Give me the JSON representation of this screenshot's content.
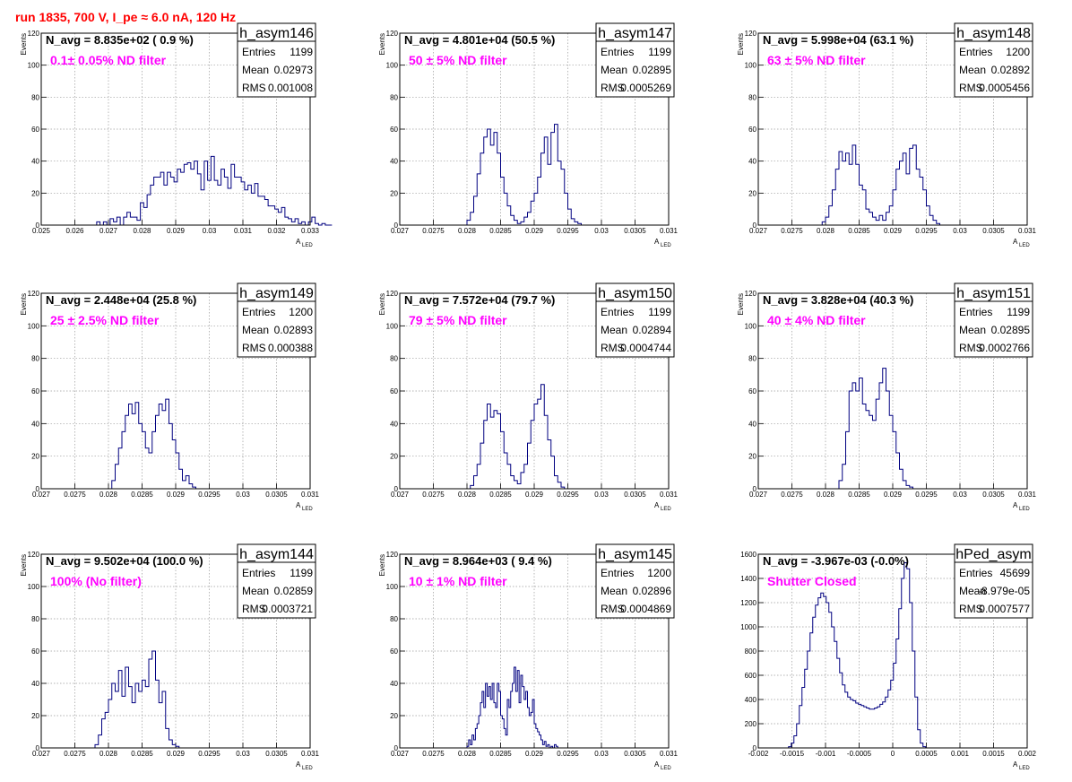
{
  "run_title": "run 1835,   700 V, I_pe ≈ 6.0 nA, 120 Hz",
  "colors": {
    "title": "#ff0000",
    "filter_label": "#ff00ff",
    "histogram": "#000080",
    "grid": "#9a9a9a"
  },
  "chart_data": [
    {
      "type": "histogram",
      "name": "h_asym146",
      "navg_label": "N_avg = 8.835e+02 ( 0.9 %)",
      "filter_label": "0.1± 0.05% ND filter",
      "stats": {
        "entries": "1199",
        "mean": "0.02973",
        "rms": "0.001008"
      },
      "xlabel": "A",
      "xlabel_sub": "LED",
      "ylabel": "Events",
      "xlim": [
        0.025,
        0.033
      ],
      "ylim": [
        0,
        120
      ],
      "xticks": [
        "0.025",
        "0.026",
        "0.027",
        "0.028",
        "0.029",
        "0.03",
        "0.031",
        "0.032",
        "0.033"
      ],
      "yticks": [
        "0",
        "20",
        "40",
        "60",
        "80",
        "100",
        "120"
      ],
      "bins": {
        "start": 0.02665,
        "width": 0.0001,
        "counts": [
          2,
          0,
          2,
          0,
          4,
          2,
          5,
          0,
          5,
          8,
          5,
          5,
          3,
          14,
          11,
          19,
          25,
          30,
          30,
          33,
          25,
          33,
          30,
          27,
          35,
          33,
          38,
          39,
          35,
          40,
          32,
          22,
          40,
          28,
          43,
          28,
          25,
          35,
          30,
          23,
          38,
          30,
          30,
          27,
          22,
          25,
          20,
          26,
          18,
          18,
          16,
          12,
          12,
          10,
          8,
          11,
          5,
          4,
          2,
          4,
          1,
          2,
          0,
          2,
          5,
          1,
          0,
          1,
          0,
          0
        ]
      }
    },
    {
      "type": "histogram",
      "name": "h_asym147",
      "navg_label": "N_avg = 4.801e+04 (50.5 %)",
      "filter_label": "50 ± 5% ND filter",
      "stats": {
        "entries": "1199",
        "mean": "0.02895",
        "rms": "0.0005269"
      },
      "xlabel": "A",
      "xlabel_sub": "LED",
      "ylabel": "Events",
      "xlim": [
        0.027,
        0.031
      ],
      "ylim": [
        0,
        120
      ],
      "xticks": [
        "0.027",
        "0.0275",
        "0.028",
        "0.0285",
        "0.029",
        "0.0295",
        "0.03",
        "0.0305",
        "0.031"
      ],
      "yticks": [
        "0",
        "20",
        "40",
        "60",
        "80",
        "100",
        "120"
      ],
      "bins": {
        "start": 0.028,
        "width": 5e-05,
        "counts": [
          3,
          8,
          18,
          32,
          45,
          55,
          60,
          50,
          58,
          45,
          30,
          20,
          12,
          6,
          3,
          1,
          2,
          5,
          8,
          15,
          20,
          30,
          45,
          55,
          38,
          58,
          63,
          40,
          35,
          20,
          10,
          4,
          2,
          1,
          0,
          0
        ]
      }
    },
    {
      "type": "histogram",
      "name": "h_asym148",
      "navg_label": "N_avg = 5.998e+04 (63.1 %)",
      "filter_label": "63 ± 5% ND filter",
      "stats": {
        "entries": "1200",
        "mean": "0.02892",
        "rms": "0.0005456"
      },
      "xlabel": "A",
      "xlabel_sub": "LED",
      "ylabel": "Events",
      "xlim": [
        0.027,
        0.031
      ],
      "ylim": [
        0,
        120
      ],
      "xticks": [
        "0.027",
        "0.0275",
        "0.028",
        "0.0285",
        "0.029",
        "0.0295",
        "0.03",
        "0.0305",
        "0.031"
      ],
      "yticks": [
        "0",
        "20",
        "40",
        "60",
        "80",
        "100",
        "120"
      ],
      "bins": {
        "start": 0.02795,
        "width": 5e-05,
        "counts": [
          2,
          5,
          12,
          22,
          35,
          46,
          40,
          45,
          38,
          50,
          38,
          25,
          22,
          10,
          8,
          5,
          3,
          6,
          3,
          8,
          12,
          22,
          35,
          40,
          45,
          32,
          48,
          50,
          35,
          30,
          22,
          12,
          6,
          3,
          1,
          0
        ]
      }
    },
    {
      "type": "histogram",
      "name": "h_asym149",
      "navg_label": "N_avg = 2.448e+04 (25.8 %)",
      "filter_label": "25 ± 2.5% ND filter",
      "stats": {
        "entries": "1200",
        "mean": "0.02893",
        "rms": "0.000388"
      },
      "xlabel": "A",
      "xlabel_sub": "LED",
      "ylabel": "Events",
      "xlim": [
        0.027,
        0.031
      ],
      "ylim": [
        0,
        120
      ],
      "xticks": [
        "0.027",
        "0.0275",
        "0.028",
        "0.0285",
        "0.029",
        "0.0295",
        "0.03",
        "0.0305",
        "0.031"
      ],
      "yticks": [
        "0",
        "20",
        "40",
        "60",
        "80",
        "100",
        "120"
      ],
      "bins": {
        "start": 0.02805,
        "width": 5e-05,
        "counts": [
          5,
          15,
          25,
          35,
          45,
          52,
          46,
          53,
          40,
          35,
          25,
          22,
          35,
          45,
          52,
          48,
          55,
          40,
          30,
          22,
          12,
          5,
          8,
          3,
          1
        ]
      }
    },
    {
      "type": "histogram",
      "name": "h_asym150",
      "navg_label": "N_avg = 7.572e+04 (79.7 %)",
      "filter_label": "79 ± 5% ND filter",
      "stats": {
        "entries": "1199",
        "mean": "0.02894",
        "rms": "0.0004744"
      },
      "xlabel": "A",
      "xlabel_sub": "LED",
      "ylabel": "Events",
      "xlim": [
        0.027,
        0.031
      ],
      "ylim": [
        0,
        120
      ],
      "xticks": [
        "0.027",
        "0.0275",
        "0.028",
        "0.0285",
        "0.029",
        "0.0295",
        "0.03",
        "0.0305",
        "0.031"
      ],
      "yticks": [
        "0",
        "20",
        "40",
        "60",
        "80",
        "100",
        "120"
      ],
      "bins": {
        "start": 0.02805,
        "width": 5e-05,
        "counts": [
          2,
          8,
          15,
          28,
          42,
          52,
          44,
          48,
          46,
          35,
          22,
          15,
          8,
          5,
          3,
          10,
          15,
          28,
          42,
          52,
          55,
          64,
          45,
          30,
          20,
          8,
          4,
          1
        ]
      }
    },
    {
      "type": "histogram",
      "name": "h_asym151",
      "navg_label": "N_avg = 3.828e+04 (40.3 %)",
      "filter_label": "40 ± 4% ND filter",
      "stats": {
        "entries": "1199",
        "mean": "0.02895",
        "rms": "0.0002766"
      },
      "xlabel": "A",
      "xlabel_sub": "LED",
      "ylabel": "Events",
      "xlim": [
        0.027,
        0.031
      ],
      "ylim": [
        0,
        120
      ],
      "xticks": [
        "0.027",
        "0.0275",
        "0.028",
        "0.0285",
        "0.029",
        "0.0295",
        "0.03",
        "0.0305",
        "0.031"
      ],
      "yticks": [
        "0",
        "20",
        "40",
        "60",
        "80",
        "100",
        "120"
      ],
      "bins": {
        "start": 0.0282,
        "width": 5e-05,
        "counts": [
          5,
          15,
          35,
          60,
          65,
          60,
          68,
          52,
          48,
          45,
          42,
          55,
          65,
          74,
          60,
          45,
          35,
          22,
          12,
          5,
          2,
          1
        ]
      }
    },
    {
      "type": "histogram",
      "name": "h_asym144",
      "navg_label": "N_avg = 9.502e+04 (100.0 %)",
      "filter_label": "100% (No filter)",
      "stats": {
        "entries": "1199",
        "mean": "0.02859",
        "rms": "0.0003721"
      },
      "xlabel": "A",
      "xlabel_sub": "LED",
      "ylabel": "Events",
      "xlim": [
        0.027,
        0.031
      ],
      "ylim": [
        0,
        120
      ],
      "xticks": [
        "0.027",
        "0.0275",
        "0.028",
        "0.0285",
        "0.029",
        "0.0295",
        "0.03",
        "0.0305",
        "0.031"
      ],
      "yticks": [
        "0",
        "20",
        "40",
        "60",
        "80",
        "100",
        "120"
      ],
      "bins": {
        "start": 0.0278,
        "width": 5e-05,
        "counts": [
          2,
          8,
          18,
          22,
          30,
          40,
          35,
          48,
          32,
          50,
          38,
          28,
          40,
          35,
          42,
          38,
          55,
          60,
          42,
          28,
          35,
          12,
          5,
          2,
          1
        ]
      }
    },
    {
      "type": "histogram",
      "name": "h_asym145",
      "navg_label": "N_avg = 8.964e+03 ( 9.4 %)",
      "filter_label": "10 ± 1% ND filter",
      "stats": {
        "entries": "1200",
        "mean": "0.02896",
        "rms": "0.0004869"
      },
      "xlabel": "A",
      "xlabel_sub": "LED",
      "ylabel": "Events",
      "xlim": [
        0.027,
        0.031
      ],
      "ylim": [
        0,
        120
      ],
      "xticks": [
        "0.027",
        "0.0275",
        "0.028",
        "0.0285",
        "0.029",
        "0.0295",
        "0.03",
        "0.0305",
        "0.031"
      ],
      "yticks": [
        "0",
        "20",
        "40",
        "60",
        "80",
        "100",
        "120"
      ],
      "bins": {
        "start": 0.028,
        "width": 2.5e-05,
        "counts": [
          1,
          5,
          2,
          8,
          5,
          12,
          15,
          20,
          28,
          35,
          25,
          40,
          32,
          38,
          30,
          40,
          28,
          25,
          40,
          35,
          20,
          18,
          12,
          8,
          30,
          25,
          35,
          40,
          50,
          35,
          48,
          28,
          45,
          38,
          30,
          35,
          25,
          20,
          22,
          30,
          15,
          12,
          10,
          8,
          5,
          2,
          4,
          1,
          2,
          0,
          1,
          0,
          2,
          1
        ]
      }
    },
    {
      "type": "histogram",
      "name": "hPed_asym",
      "navg_label": "N_avg = -3.967e-03 (-0.0%)",
      "filter_label": "Shutter Closed",
      "stats": {
        "entries": "45699",
        "mean": "-8.979e-05",
        "rms": "0.0007577"
      },
      "xlabel": "A",
      "xlabel_sub": "LED",
      "ylabel": "",
      "xlim": [
        -0.002,
        0.002
      ],
      "ylim": [
        0,
        1600
      ],
      "xticks": [
        "-0.002",
        "-0.0015",
        "-0.001",
        "-0.0005",
        "0",
        "0.0005",
        "0.001",
        "0.0015",
        "0.002"
      ],
      "yticks": [
        "0",
        "200",
        "400",
        "600",
        "800",
        "1000",
        "1200",
        "1400",
        "1600"
      ],
      "bins": {
        "start": -0.00155,
        "width": 4e-05,
        "counts": [
          10,
          40,
          100,
          200,
          350,
          500,
          650,
          800,
          950,
          1080,
          1180,
          1240,
          1280,
          1250,
          1200,
          1120,
          1000,
          880,
          740,
          620,
          520,
          460,
          420,
          400,
          390,
          370,
          360,
          350,
          340,
          330,
          320,
          320,
          330,
          340,
          360,
          380,
          420,
          480,
          560,
          700,
          900,
          1150,
          1400,
          1530,
          1480,
          1200,
          800,
          420,
          150,
          40,
          10
        ]
      }
    }
  ]
}
